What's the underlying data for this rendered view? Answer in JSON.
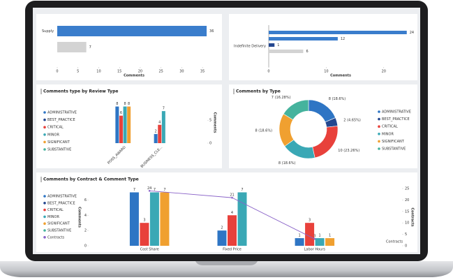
{
  "chart_data": [
    {
      "type": "hbar",
      "categories": [
        "Supply"
      ],
      "series": [
        {
          "color": "#3a7dcc",
          "values": [
            36
          ]
        },
        {
          "color": "#d3d3d3",
          "values": [
            7
          ]
        }
      ],
      "xlim": [
        0,
        37
      ],
      "xticks": [
        0,
        5,
        10,
        15,
        20,
        25,
        30,
        35
      ],
      "xlabel": "Comments"
    },
    {
      "type": "hbar",
      "categories": [
        "Indefinite Delivery"
      ],
      "series": [
        {
          "color": "#3a7dcc",
          "values": [
            24
          ]
        },
        {
          "color": "#3a7dcc",
          "values": [
            12
          ]
        },
        {
          "color": "#24478f",
          "values": [
            1
          ]
        },
        {
          "color": "#d3d3d3",
          "values": [
            6
          ]
        }
      ],
      "xlim": [
        0,
        25
      ],
      "xticks": [
        0,
        10,
        20
      ],
      "xlabel": "Comments"
    },
    {
      "type": "bar",
      "title": "Comments type by Review Type",
      "categories": [
        "POSS_AWARD",
        "BUSINESS_CLE..."
      ],
      "series": [
        {
          "name": "ADMINISTRATIVE",
          "color": "#2e75c4",
          "values": [
            8,
            2
          ]
        },
        {
          "name": "BEST_PRACTICE",
          "color": "#24478f",
          "values": [
            null,
            null
          ]
        },
        {
          "name": "CRITICAL",
          "color": "#e8413b",
          "values": [
            6,
            4
          ]
        },
        {
          "name": "MINOR",
          "color": "#3aa8b5",
          "values": [
            8,
            7
          ]
        },
        {
          "name": "SIGNIFICANT",
          "color": "#f0a030",
          "values": [
            8,
            null
          ]
        },
        {
          "name": "SUBSTANTIVE",
          "color": "#45b39d",
          "values": [
            null,
            null
          ]
        }
      ],
      "ylim": [
        0,
        9
      ],
      "yticks": [
        0,
        5
      ],
      "ylabel": "Comments"
    },
    {
      "type": "pie",
      "title": "Comments by Type",
      "categories": [
        "ADMINISTRATIVE",
        "BEST_PRACTICE",
        "CRITICAL",
        "MINOR",
        "SIGNIFICANT",
        "SUBSTANTIVE"
      ],
      "values": [
        8,
        2,
        10,
        8,
        8,
        7
      ],
      "value_labels": [
        "8 (18.6%)",
        "2 (4.65%)",
        "10 (23.26%)",
        "8 (18.6%)",
        "8 (18.6%)",
        "7 (16.28%)"
      ],
      "colors": [
        "#2e75c4",
        "#24478f",
        "#e8413b",
        "#3aa8b5",
        "#f0a030",
        "#45b39d"
      ]
    },
    {
      "type": "combo",
      "title": "Comments by Contract & Comment Type",
      "categories": [
        "Cost Share",
        "Fixed Price",
        "Labor Hours"
      ],
      "series": [
        {
          "name": "ADMINISTRATIVE",
          "color": "#2e75c4",
          "values": [
            7,
            2,
            1
          ]
        },
        {
          "name": "BEST_PRACTICE",
          "color": "#24478f",
          "values": [
            null,
            null,
            null
          ]
        },
        {
          "name": "CRITICAL",
          "color": "#e8413b",
          "values": [
            3,
            4,
            3
          ]
        },
        {
          "name": "MINOR",
          "color": "#3aa8b5",
          "values": [
            7,
            7,
            1
          ]
        },
        {
          "name": "SIGNIFICANT",
          "color": "#f0a030",
          "values": [
            7,
            null,
            1
          ]
        },
        {
          "name": "SUBSTANTIVE",
          "color": "#45b39d",
          "values": [
            null,
            null,
            null
          ]
        },
        {
          "name": "Contracts",
          "color": "#8a63c8",
          "axis": "y2",
          "values": [
            24,
            21,
            3
          ]
        }
      ],
      "ylim": [
        0,
        7.5
      ],
      "yticks": [
        0,
        2,
        4,
        6
      ],
      "ylabel": "Comments",
      "y2lim": [
        0,
        25
      ],
      "y2ticks": [
        0,
        5,
        10,
        15,
        20,
        25
      ],
      "y2label": "Contracts",
      "xlabel": "Contracts"
    }
  ]
}
